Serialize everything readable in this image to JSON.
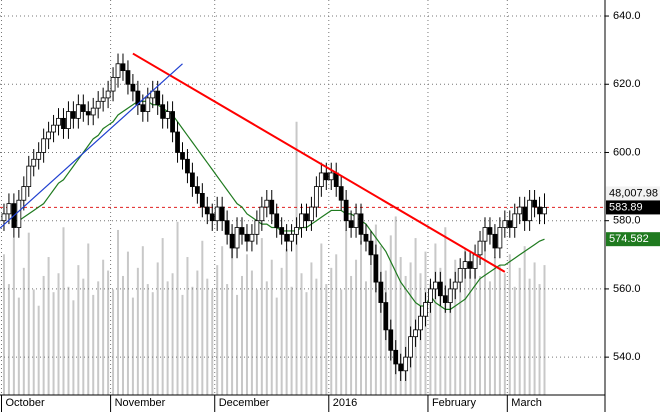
{
  "chart_data": {
    "type": "candlestick",
    "xlim": [
      -0.8,
      121.2
    ],
    "xticks": [
      {
        "value": 0,
        "label": "October"
      },
      {
        "value": 22,
        "label": "November"
      },
      {
        "value": 43,
        "label": "December"
      },
      {
        "value": 66,
        "label": "2016"
      },
      {
        "value": 86,
        "label": "February"
      },
      {
        "value": 102,
        "label": "March"
      }
    ],
    "ylim": [
      528.9,
      644.7
    ],
    "yticks": [
      {
        "value": 540,
        "label": "540.0"
      },
      {
        "value": 560,
        "label": "560.0"
      },
      {
        "value": 580,
        "label": "580.0"
      },
      {
        "value": 600,
        "label": "600.0"
      },
      {
        "value": 620,
        "label": "620.0"
      },
      {
        "value": 640,
        "label": "640.0"
      }
    ],
    "grid": true,
    "up_color": "#ffffff",
    "down_color": "#000000",
    "open": [
      580,
      582,
      585,
      578,
      586,
      590,
      596,
      598,
      600,
      604,
      606,
      608,
      610,
      607,
      612,
      610,
      614,
      612,
      611,
      613,
      615,
      616,
      618,
      622,
      626,
      624,
      620,
      618,
      614,
      612,
      616,
      618,
      614,
      610,
      612,
      606,
      600,
      598,
      594,
      590,
      588,
      584,
      582,
      580,
      584,
      580,
      576,
      572,
      578,
      576,
      574,
      576,
      580,
      584,
      586,
      582,
      578,
      576,
      574,
      576,
      578,
      582,
      580,
      584,
      590,
      594,
      592,
      594,
      590,
      586,
      580,
      578,
      582,
      576,
      574,
      570,
      562,
      556,
      548,
      542,
      538,
      536,
      540,
      546,
      548,
      552,
      556,
      560,
      562,
      558,
      556,
      560,
      562,
      566,
      568,
      566,
      570,
      574,
      578,
      576,
      572,
      578,
      580,
      578,
      582,
      584,
      580,
      586,
      584,
      582
    ],
    "high": [
      585,
      588,
      588,
      589,
      593,
      599,
      601,
      603,
      607,
      609,
      611,
      613,
      613,
      615,
      615,
      617,
      617,
      615,
      616,
      618,
      619,
      621,
      625,
      629,
      629,
      627,
      623,
      621,
      617,
      619,
      621,
      621,
      617,
      615,
      615,
      609,
      603,
      601,
      597,
      593,
      591,
      587,
      585,
      587,
      587,
      583,
      579,
      581,
      581,
      579,
      579,
      583,
      587,
      589,
      589,
      585,
      581,
      579,
      579,
      581,
      585,
      585,
      587,
      593,
      597,
      597,
      597,
      597,
      593,
      589,
      583,
      585,
      585,
      579,
      577,
      573,
      565,
      559,
      551,
      545,
      541,
      543,
      549,
      551,
      555,
      559,
      563,
      565,
      565,
      561,
      563,
      565,
      569,
      571,
      571,
      573,
      577,
      581,
      581,
      579,
      581,
      583,
      583,
      585,
      587,
      587,
      589,
      589,
      587,
      588
    ],
    "low": [
      577,
      579,
      575,
      575,
      583,
      587,
      593,
      595,
      597,
      601,
      603,
      605,
      604,
      604,
      607,
      607,
      609,
      608,
      608,
      610,
      612,
      613,
      615,
      619,
      621,
      617,
      615,
      611,
      609,
      609,
      613,
      611,
      607,
      607,
      603,
      597,
      595,
      591,
      587,
      585,
      581,
      579,
      577,
      577,
      577,
      573,
      569,
      569,
      573,
      571,
      571,
      573,
      577,
      581,
      579,
      575,
      573,
      571,
      571,
      573,
      575,
      577,
      577,
      581,
      587,
      589,
      589,
      587,
      583,
      577,
      575,
      575,
      573,
      571,
      567,
      559,
      553,
      545,
      539,
      535,
      533,
      533,
      537,
      543,
      545,
      549,
      553,
      557,
      555,
      553,
      553,
      557,
      559,
      563,
      563,
      563,
      567,
      571,
      573,
      569,
      569,
      575,
      575,
      575,
      579,
      577,
      577,
      581,
      579,
      579
    ],
    "close": [
      582,
      585,
      578,
      586,
      590,
      596,
      598,
      600,
      604,
      606,
      608,
      610,
      607,
      612,
      610,
      614,
      612,
      611,
      613,
      615,
      616,
      618,
      622,
      626,
      624,
      620,
      618,
      614,
      612,
      616,
      618,
      614,
      610,
      612,
      606,
      600,
      598,
      594,
      590,
      588,
      584,
      582,
      580,
      584,
      580,
      576,
      572,
      578,
      576,
      574,
      576,
      580,
      584,
      586,
      582,
      578,
      576,
      574,
      576,
      578,
      582,
      580,
      584,
      590,
      594,
      592,
      594,
      590,
      586,
      580,
      578,
      582,
      576,
      574,
      570,
      562,
      556,
      548,
      542,
      538,
      536,
      540,
      546,
      548,
      552,
      556,
      560,
      562,
      558,
      556,
      560,
      562,
      566,
      568,
      566,
      570,
      574,
      578,
      576,
      572,
      578,
      580,
      578,
      582,
      584,
      580,
      586,
      584,
      582,
      583.89
    ],
    "ma": {
      "color": "#1f7a1f",
      "values": [
        null,
        null,
        580,
        580,
        581,
        582,
        583,
        584,
        585,
        587,
        589,
        591,
        592,
        594,
        596,
        598,
        600,
        602,
        604,
        605,
        607,
        608,
        609,
        611,
        612,
        613,
        614,
        615,
        615,
        615,
        614,
        614,
        613,
        612,
        611,
        609,
        607,
        605,
        603,
        601,
        599,
        597,
        595,
        593,
        591,
        589,
        587,
        585,
        584,
        582,
        581,
        580,
        579,
        579,
        578,
        578,
        577,
        577,
        577,
        577,
        578,
        578,
        579,
        580,
        581,
        582,
        583,
        583,
        583,
        582,
        582,
        581,
        580,
        579,
        577,
        575,
        573,
        571,
        568,
        565,
        562,
        560,
        558,
        556,
        555,
        555,
        558,
        556,
        555,
        554,
        554,
        555,
        556,
        557,
        559,
        561,
        563,
        564,
        565,
        566,
        567,
        567,
        568,
        569,
        570,
        571,
        572,
        573,
        574,
        574.582
      ]
    },
    "volume": {
      "color": "#c8c8c8",
      "vlim": [
        0,
        146000
      ],
      "label": "48,007.98",
      "values": [
        52000,
        41000,
        58000,
        36000,
        47000,
        60000,
        39000,
        33000,
        44000,
        51000,
        38000,
        45000,
        62000,
        40000,
        35000,
        48000,
        43000,
        56000,
        37000,
        42000,
        50000,
        46000,
        39000,
        61000,
        44000,
        53000,
        36000,
        47000,
        55000,
        41000,
        38000,
        49000,
        58000,
        42000,
        45000,
        64000,
        37000,
        51000,
        40000,
        46000,
        57000,
        43000,
        39000,
        48000,
        55000,
        41000,
        60000,
        37000,
        44000,
        52000,
        46000,
        39000,
        58000,
        42000,
        50000,
        36000,
        47000,
        54000,
        40000,
        101000,
        45000,
        38000,
        49000,
        43000,
        56000,
        41000,
        47000,
        52000,
        39000,
        61000,
        44000,
        50000,
        57000,
        42000,
        48000,
        63000,
        55000,
        46000,
        59000,
        66000,
        51000,
        44000,
        49000,
        58000,
        45000,
        53000,
        41000,
        56000,
        47000,
        62000,
        43000,
        50000,
        38000,
        54000,
        46000,
        49000,
        44000,
        57000,
        42000,
        51000,
        48000,
        45000,
        52000,
        40000,
        47000,
        55000,
        43000,
        49000,
        41000,
        48007.98
      ]
    },
    "trendlines": [
      {
        "color": "#ff0000",
        "x": [
          26,
          101
        ],
        "y": [
          629,
          565
        ]
      },
      {
        "color": "#2040d0",
        "x": [
          -0.8,
          36
        ],
        "y": [
          577.8,
          626
        ]
      }
    ],
    "last_line_color": "#e02020"
  }
}
